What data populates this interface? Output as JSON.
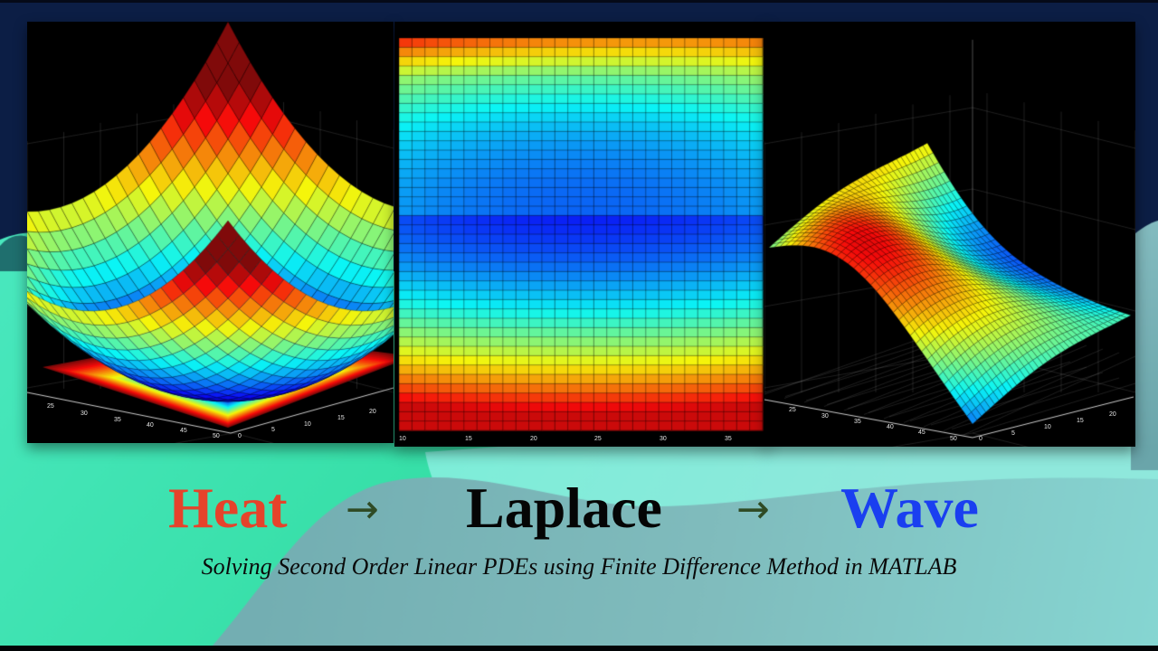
{
  "title": {
    "heat": "Heat",
    "laplace": "Laplace",
    "wave": "Wave",
    "arrow": "→",
    "colors": {
      "heat": "#e5432b",
      "laplace": "#050505",
      "wave": "#1a3ff0",
      "arrow": "#2f4b25"
    }
  },
  "subtitle": "Solving Second Order Linear PDEs using Finite Difference Method in MATLAB",
  "background": {
    "navy": "#0c1e45",
    "teal_left": "#3fe3b0",
    "teal_mid": "#6fead2",
    "slate": "#7fb7b8"
  },
  "chart_data": [
    {
      "type": "surface3d",
      "title": "Heat",
      "description": "3D surface of a bowl-shaped (paraboloid-like) heat solution with filled contour projection on the base plane",
      "colormap": "jet",
      "x_ticks": [
        "0",
        "5",
        "10",
        "15",
        "20"
      ],
      "y_ticks": [
        "25",
        "30",
        "35",
        "40",
        "45",
        "50"
      ],
      "grid": true
    },
    {
      "type": "heatmap",
      "title": "Laplace",
      "description": "2D grid heatmap: low (blue) center, rising to red at bottom edge and orange/yellow at top",
      "colormap": "jet",
      "x_ticks": [
        "10",
        "15",
        "20",
        "25",
        "30",
        "35"
      ],
      "grid": true
    },
    {
      "type": "surface3d",
      "title": "Wave",
      "description": "3D surface of a wave solution with ridge (red) and trough (blue) over a grid floor",
      "colormap": "jet",
      "x_ticks": [
        "0",
        "5",
        "10",
        "15",
        "20"
      ],
      "y_ticks": [
        "25",
        "30",
        "35",
        "40",
        "45",
        "50"
      ],
      "grid": true
    }
  ]
}
